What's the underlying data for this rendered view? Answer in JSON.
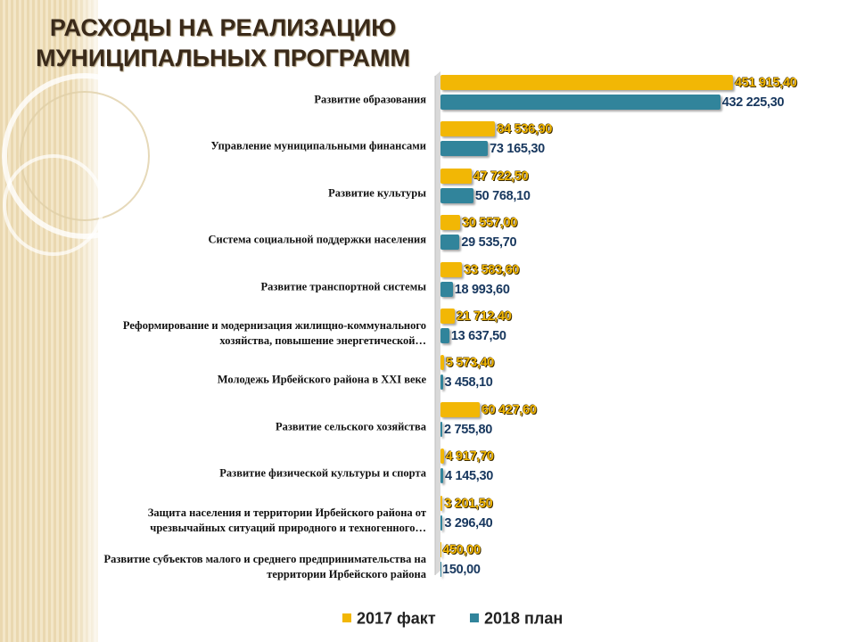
{
  "chart_data": {
    "type": "hbar",
    "title": "РАСХОДЫ НА РЕАЛИЗАЦИЮ МУНИЦИПАЛЬНЫХ ПРОГРАММ",
    "categories": [
      "Развитие образования",
      "Управление муниципальными финансами",
      "Развитие культуры",
      "Система социальной поддержки населения",
      "Развитие транспортной системы",
      "Реформирование и модернизация жилищно-коммунального хозяйства, повышение энергетической…",
      "Молодежь Ирбейского района в XXI веке",
      "Развитие сельского хозяйства",
      "Развитие физической культуры и спорта",
      "Защита населения и территории Ирбейского района от чрезвычайных ситуаций природного и техногенного…",
      "Развитие субъектов малого и среднего предпринимательства на территории Ирбейского района"
    ],
    "series": [
      {
        "name": "2017 факт",
        "color": "#f2b705",
        "values": [
          451915.4,
          84536.9,
          47722.5,
          30557.0,
          33583.6,
          21712.4,
          5573.4,
          60427.6,
          4917.7,
          3201.5,
          450.0
        ],
        "value_labels": [
          "451 915,40",
          "84 536,90",
          "47 722,50",
          "30 557,00",
          "33 583,60",
          "21 712,40",
          "5 573,40",
          "60 427,60",
          "4 917,70",
          "3 201,50",
          "450,00"
        ]
      },
      {
        "name": "2018 план",
        "color": "#31849b",
        "values": [
          432225.3,
          73165.3,
          50768.1,
          29535.7,
          18993.6,
          13637.5,
          3458.1,
          2755.8,
          4145.3,
          3296.4,
          150.0
        ],
        "value_labels": [
          "432 225,30",
          "73 165,30",
          "50 768,10",
          "29 535,70",
          "18 993,60",
          "13 637,50",
          "3 458,10",
          "2 755,80",
          "4 145,30",
          "3 296,40",
          "150,00"
        ]
      }
    ],
    "legend": "bottom"
  }
}
